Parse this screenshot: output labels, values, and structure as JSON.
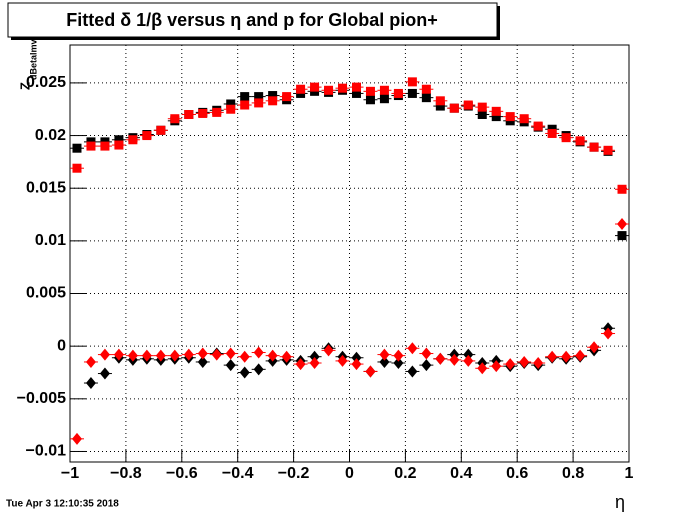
{
  "chart_data": {
    "type": "scatter",
    "title": "Fitted δ 1/β versus η and p for Global pion+",
    "xlabel": "η",
    "ylabel": "Z",
    "ylabel_sub": "dBetalmv",
    "footer": "Tue Apr  3 12:10:35 2018",
    "grid": true,
    "grid_style": "dotted",
    "xlim": [
      -1,
      1
    ],
    "ylim": [
      -0.011,
      0.0286
    ],
    "xticks": [
      {
        "value": -1,
        "label": "−1"
      },
      {
        "value": -0.8,
        "label": "−0.8"
      },
      {
        "value": -0.6,
        "label": "−0.6"
      },
      {
        "value": -0.4,
        "label": "−0.4"
      },
      {
        "value": -0.2,
        "label": "−0.2"
      },
      0,
      0.2,
      0.4,
      0.6,
      0.8,
      1
    ],
    "yticks": [
      {
        "value": -0.01,
        "label": "−0.01"
      },
      {
        "value": -0.005,
        "label": "−0.005"
      },
      0,
      0.005,
      0.01,
      0.015,
      0.02,
      0.025
    ],
    "x": [
      -0.975,
      -0.925,
      -0.875,
      -0.825,
      -0.775,
      -0.725,
      -0.675,
      -0.625,
      -0.575,
      -0.525,
      -0.475,
      -0.425,
      -0.375,
      -0.325,
      -0.275,
      -0.225,
      -0.175,
      -0.125,
      -0.075,
      -0.025,
      0.025,
      0.075,
      0.125,
      0.175,
      0.225,
      0.275,
      0.325,
      0.375,
      0.425,
      0.475,
      0.525,
      0.575,
      0.625,
      0.675,
      0.725,
      0.775,
      0.825,
      0.875,
      0.925,
      0.975
    ],
    "series": [
      {
        "color": "#000000",
        "marker": "square",
        "values": [
          0.0188,
          0.0194,
          0.0194,
          0.0196,
          0.0198,
          0.0201,
          0.0205,
          0.0214,
          0.022,
          0.0222,
          0.0224,
          0.023,
          0.0237,
          0.0237,
          0.0238,
          0.0234,
          0.024,
          0.0242,
          0.0241,
          0.0243,
          0.024,
          0.0234,
          0.0235,
          0.0238,
          0.024,
          0.0236,
          0.0228,
          0.0226,
          0.0228,
          0.022,
          0.0218,
          0.0214,
          0.0213,
          0.0208,
          0.0206,
          0.02,
          0.0194,
          0.0189,
          0.0185,
          0.0105
        ]
      },
      {
        "color": "#ff0000",
        "marker": "square",
        "values": [
          0.0169,
          0.019,
          0.019,
          0.0191,
          0.0196,
          0.02,
          0.0205,
          0.0216,
          0.022,
          0.0221,
          0.0222,
          0.0225,
          0.0229,
          0.0231,
          0.0233,
          0.0237,
          0.0244,
          0.0246,
          0.0243,
          0.0245,
          0.0246,
          0.0242,
          0.0243,
          0.024,
          0.0251,
          0.0244,
          0.0233,
          0.0226,
          0.0229,
          0.0227,
          0.0223,
          0.0218,
          0.0216,
          0.0209,
          0.0202,
          0.0198,
          0.0195,
          0.0189,
          0.0186,
          0.0149
        ]
      },
      {
        "color": "#000000",
        "marker": "diamond",
        "values": [
          null,
          -0.0035,
          -0.0026,
          -0.0011,
          -0.0013,
          -0.0012,
          -0.0013,
          -0.0012,
          -0.0011,
          -0.0015,
          -0.0007,
          -0.0018,
          -0.0025,
          -0.0022,
          -0.0014,
          -0.0013,
          -0.0014,
          -0.001,
          -0.0002,
          -0.001,
          -0.0011,
          -0.0024,
          -0.0015,
          -0.0016,
          -0.0024,
          -0.0018,
          -0.0012,
          -0.0008,
          -0.0008,
          -0.0016,
          -0.0014,
          -0.0019,
          -0.0016,
          -0.0018,
          -0.0011,
          -0.0012,
          -0.001,
          -0.0004,
          0.0017,
          null
        ]
      },
      {
        "color": "#ff0000",
        "marker": "diamond",
        "values": [
          -0.0088,
          -0.0015,
          -0.0008,
          -0.0008,
          -0.0009,
          -0.0009,
          -0.0009,
          -0.0009,
          -0.0008,
          -0.0007,
          -0.0008,
          -0.0007,
          -0.001,
          -0.0006,
          -0.0009,
          -0.001,
          -0.0017,
          -0.0016,
          -0.0004,
          -0.0014,
          -0.0017,
          -0.0024,
          -0.0008,
          -0.0009,
          -0.0002,
          -0.0007,
          -0.0012,
          -0.0013,
          -0.0014,
          -0.0021,
          -0.0019,
          -0.0017,
          -0.0015,
          -0.0016,
          -0.001,
          -0.001,
          -0.0009,
          -0.0001,
          0.0012,
          0.0116
        ]
      }
    ]
  }
}
